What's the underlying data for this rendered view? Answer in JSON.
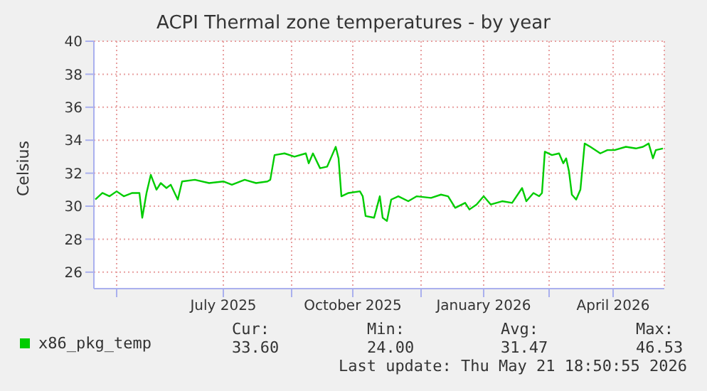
{
  "chart_data": {
    "type": "line",
    "title": "ACPI Thermal zone temperatures - by year",
    "ylabel": "Celsius",
    "x": [
      "2025-04-16",
      "2025-04-21",
      "2025-04-26",
      "2025-05-01",
      "2025-05-06",
      "2025-05-12",
      "2025-05-17",
      "2025-05-19",
      "2025-05-22",
      "2025-05-25",
      "2025-05-29",
      "2025-06-01",
      "2025-06-05",
      "2025-06-08",
      "2025-06-13",
      "2025-06-16",
      "2025-06-25",
      "2025-07-05",
      "2025-07-15",
      "2025-07-21",
      "2025-07-30",
      "2025-08-07",
      "2025-08-15",
      "2025-08-17",
      "2025-08-20",
      "2025-08-27",
      "2025-09-03",
      "2025-09-11",
      "2025-09-13",
      "2025-09-16",
      "2025-09-21",
      "2025-09-26",
      "2025-09-29",
      "2025-10-02",
      "2025-10-04",
      "2025-10-06",
      "2025-10-11",
      "2025-10-19",
      "2025-10-21",
      "2025-10-23",
      "2025-10-29",
      "2025-11-02",
      "2025-11-04",
      "2025-11-07",
      "2025-11-10",
      "2025-11-15",
      "2025-11-22",
      "2025-11-28",
      "2025-12-08",
      "2025-12-15",
      "2025-12-20",
      "2025-12-25",
      "2026-01-01",
      "2026-01-04",
      "2026-01-09",
      "2026-01-14",
      "2026-01-19",
      "2026-01-27",
      "2026-02-03",
      "2026-02-10",
      "2026-02-13",
      "2026-02-18",
      "2026-02-22",
      "2026-02-24",
      "2026-02-26",
      "2026-03-03",
      "2026-03-08",
      "2026-03-11",
      "2026-03-13",
      "2026-03-15",
      "2026-03-17",
      "2026-03-20",
      "2026-03-23",
      "2026-03-26",
      "2026-03-30",
      "2026-04-06",
      "2026-04-11",
      "2026-04-16",
      "2026-04-24",
      "2026-05-01",
      "2026-05-06",
      "2026-05-10",
      "2026-05-13",
      "2026-05-15",
      "2026-05-20"
    ],
    "series": [
      {
        "name": "x86_pkg_temp",
        "color": "#00cc00",
        "values": [
          30.4,
          30.8,
          30.6,
          30.9,
          30.6,
          30.8,
          30.8,
          29.3,
          30.8,
          31.9,
          31.0,
          31.4,
          31.1,
          31.3,
          30.4,
          31.5,
          31.6,
          31.4,
          31.5,
          31.3,
          31.6,
          31.4,
          31.5,
          31.6,
          33.1,
          33.2,
          33.0,
          33.2,
          32.6,
          33.2,
          32.3,
          32.4,
          33.0,
          33.6,
          32.9,
          30.6,
          30.8,
          30.9,
          30.6,
          29.4,
          29.3,
          30.6,
          29.3,
          29.1,
          30.4,
          30.6,
          30.3,
          30.6,
          30.5,
          30.7,
          30.6,
          29.9,
          30.2,
          29.8,
          30.1,
          30.6,
          30.1,
          30.3,
          30.2,
          31.1,
          30.3,
          30.8,
          30.6,
          30.8,
          33.3,
          33.1,
          33.2,
          32.6,
          32.9,
          32.1,
          30.7,
          30.4,
          31.0,
          33.8,
          33.6,
          33.2,
          33.4,
          33.4,
          33.6,
          33.5,
          33.6,
          33.8,
          32.9,
          33.4,
          33.5
        ]
      }
    ],
    "xlim": [
      "2025-04-15",
      "2026-05-21"
    ],
    "xticks": [
      {
        "value": "2025-05-01",
        "label": null
      },
      {
        "value": "2025-07-15",
        "label": "July 2025"
      },
      {
        "value": "2025-09-01",
        "label": null
      },
      {
        "value": "2025-10-14",
        "label": "October 2025"
      },
      {
        "value": "2025-12-01",
        "label": null
      },
      {
        "value": "2026-01-14",
        "label": "January 2026"
      },
      {
        "value": "2026-03-01",
        "label": null
      },
      {
        "value": "2026-04-15",
        "label": "April 2026"
      }
    ],
    "ylim": [
      25,
      40
    ],
    "yticks": [
      26,
      28,
      30,
      32,
      34,
      36,
      38,
      40
    ],
    "grid": true,
    "legend": "bottom left",
    "marker": "none",
    "line_style": "solid",
    "annotations": [
      "Cur:",
      "Min:",
      "Avg:",
      "Max:",
      "33.60",
      "24.00",
      "31.47",
      "46.53",
      "Last update: Thu May 21 18:50:55 2026"
    ]
  }
}
